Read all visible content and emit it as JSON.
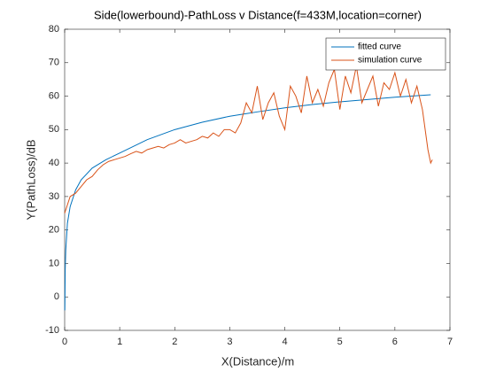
{
  "chart_data": {
    "type": "line",
    "title": "Side(lowerbound)-PathLoss v Distance(f=433M,location=corner)",
    "xlabel": "X(Distance)/m",
    "ylabel": "Y(PathLoss)/dB",
    "xlim": [
      0,
      7
    ],
    "ylim": [
      -10,
      80
    ],
    "xticks": [
      0,
      1,
      2,
      3,
      4,
      5,
      6,
      7
    ],
    "yticks": [
      -10,
      0,
      10,
      20,
      30,
      40,
      50,
      60,
      70,
      80
    ],
    "legend": "upper right",
    "series": [
      {
        "name": "fitted curve",
        "color": "#0072bd",
        "x": [
          0.003,
          0.01,
          0.02,
          0.05,
          0.1,
          0.2,
          0.3,
          0.5,
          0.75,
          1,
          1.5,
          2,
          2.5,
          3,
          3.5,
          4,
          4.5,
          5,
          5.5,
          6,
          6.65
        ],
        "values": [
          -4,
          8,
          14,
          22,
          27,
          32,
          35,
          38.5,
          41,
          43,
          47,
          50,
          52.2,
          54,
          55.3,
          56.5,
          57.5,
          58.3,
          59,
          59.7,
          60.4
        ]
      },
      {
        "name": "simulation curve",
        "color": "#d95319",
        "x": [
          0,
          0.1,
          0.2,
          0.3,
          0.4,
          0.5,
          0.6,
          0.7,
          0.8,
          0.9,
          1.0,
          1.1,
          1.2,
          1.3,
          1.4,
          1.5,
          1.6,
          1.7,
          1.8,
          1.9,
          2.0,
          2.1,
          2.2,
          2.3,
          2.4,
          2.5,
          2.6,
          2.7,
          2.8,
          2.9,
          3.0,
          3.1,
          3.2,
          3.3,
          3.4,
          3.5,
          3.6,
          3.7,
          3.8,
          3.9,
          4.0,
          4.1,
          4.2,
          4.3,
          4.4,
          4.5,
          4.6,
          4.7,
          4.8,
          4.9,
          5.0,
          5.1,
          5.2,
          5.3,
          5.4,
          5.5,
          5.6,
          5.7,
          5.8,
          5.9,
          6.0,
          6.1,
          6.2,
          6.3,
          6.4,
          6.5,
          6.6,
          6.65,
          6.68
        ],
        "values": [
          25,
          30,
          31,
          33,
          35,
          36,
          38,
          39.5,
          40.5,
          41,
          41.5,
          42,
          42.8,
          43.5,
          43,
          44,
          44.5,
          45,
          44.5,
          45.5,
          46,
          47,
          46,
          46.5,
          47,
          48,
          47.5,
          49,
          48,
          50,
          50,
          49,
          52,
          58,
          55,
          63,
          53,
          58,
          61,
          54,
          50,
          63,
          60,
          55,
          66,
          58,
          62,
          57,
          64,
          68,
          56,
          66,
          61,
          69,
          58,
          62,
          66,
          57,
          64,
          62,
          67,
          60,
          65,
          58,
          63,
          56,
          44,
          40,
          41
        ]
      }
    ]
  }
}
